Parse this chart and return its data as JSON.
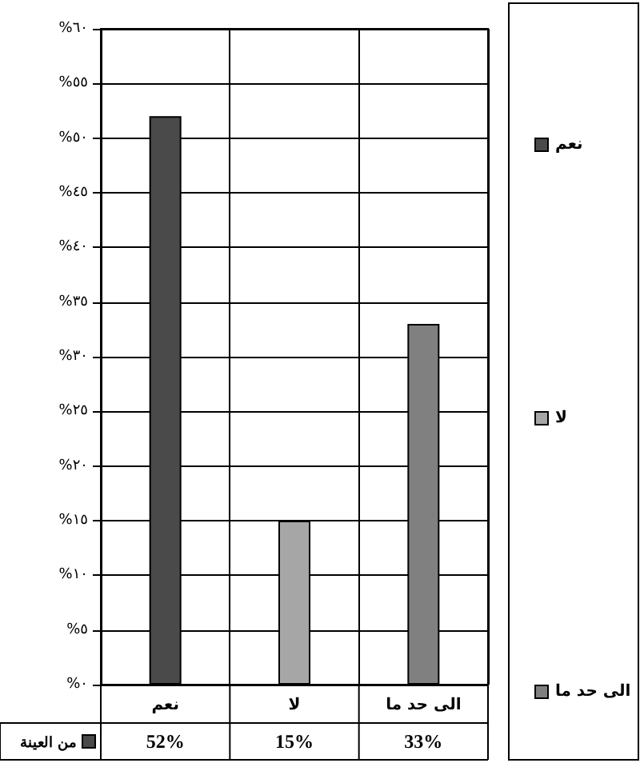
{
  "chart_data": {
    "type": "bar",
    "categories": [
      "نعم",
      "لا",
      "الى حد ما"
    ],
    "series": [
      {
        "name": "من العينة",
        "colors": [
          "#4a4a4a",
          "#a6a6a6",
          "#808080"
        ],
        "values": [
          52,
          15,
          33
        ],
        "value_labels": [
          "52%",
          "15%",
          "33%"
        ]
      }
    ],
    "ylim": [
      0,
      60
    ],
    "yticks": [
      {
        "value": 0,
        "label": "%٠"
      },
      {
        "value": 5,
        "label": "%٥"
      },
      {
        "value": 10,
        "label": "%١٠"
      },
      {
        "value": 15,
        "label": "%١٥"
      },
      {
        "value": 20,
        "label": "%٢٠"
      },
      {
        "value": 25,
        "label": "%٢٥"
      },
      {
        "value": 30,
        "label": "%٣٠"
      },
      {
        "value": 35,
        "label": "%٣٥"
      },
      {
        "value": 40,
        "label": "%٤٠"
      },
      {
        "value": 45,
        "label": "%٤٥"
      },
      {
        "value": 50,
        "label": "%٥٠"
      },
      {
        "value": 55,
        "label": "%٥٥"
      },
      {
        "value": 60,
        "label": "%٦٠"
      }
    ],
    "grid": true,
    "legend": "bottom left"
  }
}
